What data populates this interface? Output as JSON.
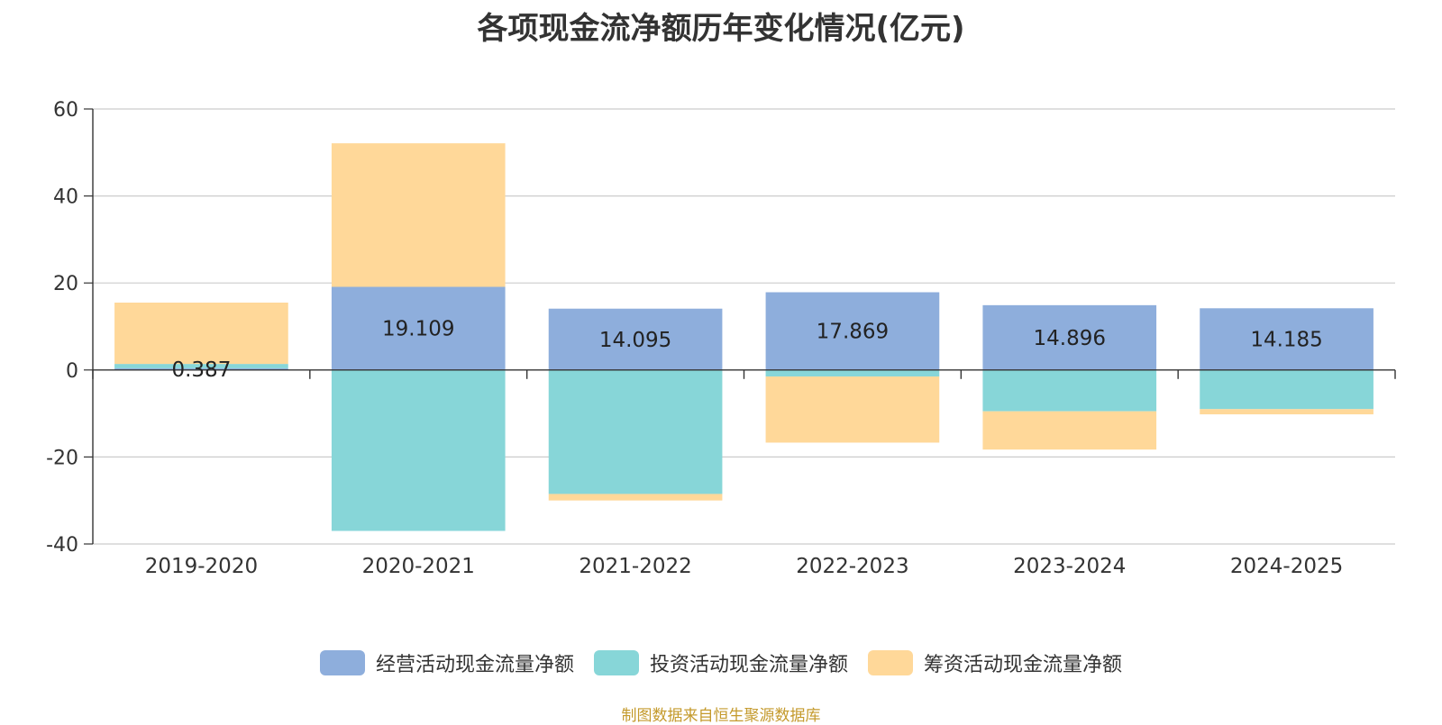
{
  "chart_data": {
    "type": "bar",
    "stacked": true,
    "title": "各项现金流净额历年变化情况(亿元)",
    "categories": [
      "2019-2020",
      "2020-2021",
      "2021-2022",
      "2022-2023",
      "2023-2024",
      "2024-2025"
    ],
    "series": [
      {
        "name": "经营活动现金流量净额",
        "color": "#8eaedc",
        "values": [
          0.387,
          19.109,
          14.095,
          17.869,
          14.896,
          14.185
        ],
        "labels": [
          "0.387",
          "19.109",
          "14.095",
          "17.869",
          "14.896",
          "14.185"
        ]
      },
      {
        "name": "投资活动现金流量净额",
        "color": "#87d6d8",
        "values": [
          1.0,
          -37.0,
          -28.5,
          -1.5,
          -9.5,
          -9.0
        ]
      },
      {
        "name": "筹资活动现金流量净额",
        "color": "#ffd899",
        "values": [
          14.1,
          33.0,
          -1.5,
          -15.2,
          -8.8,
          -1.2
        ]
      }
    ],
    "ylim": [
      -40,
      60
    ],
    "yticks": [
      60,
      40,
      20,
      0,
      -20,
      -40
    ],
    "grid": true,
    "legend_position": "bottom"
  },
  "source_note": "制图数据来自恒生聚源数据库"
}
